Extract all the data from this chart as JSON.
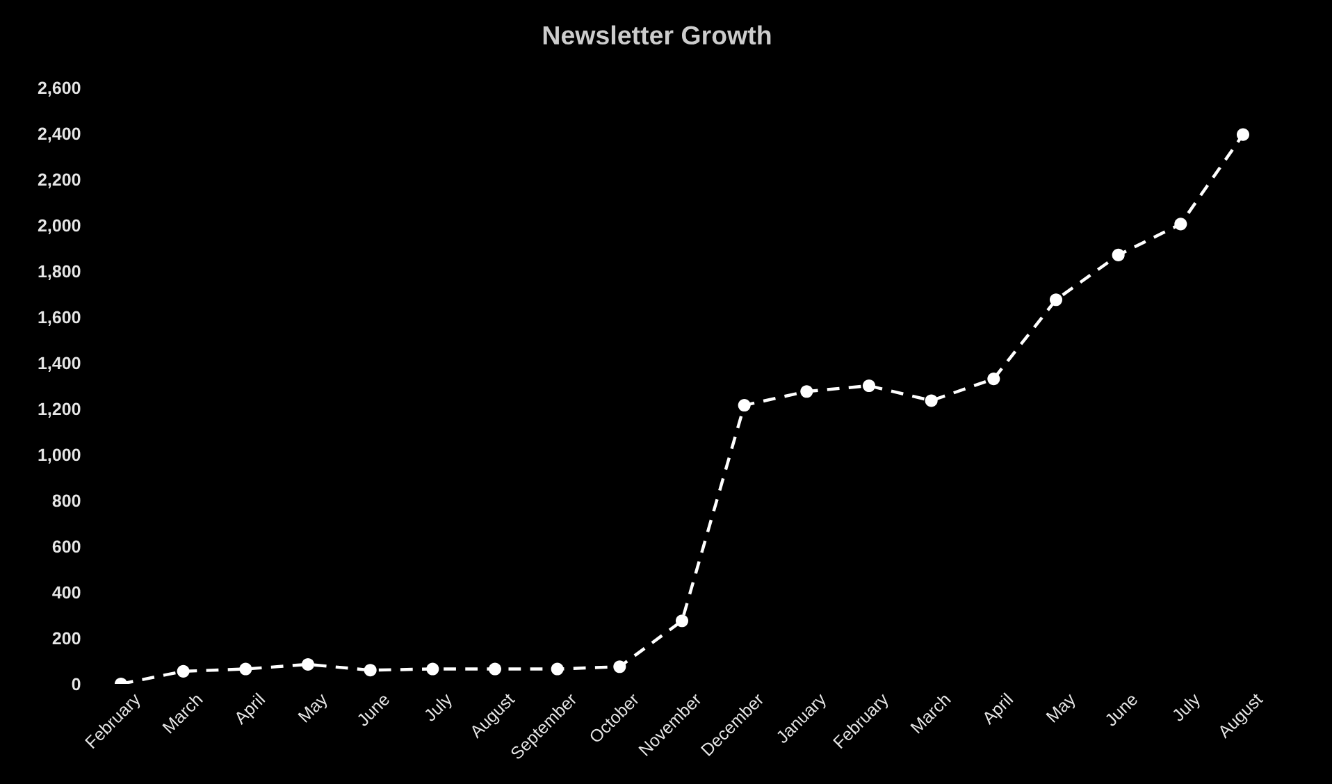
{
  "chart_data": {
    "type": "line",
    "title": "Newsletter Growth",
    "categories": [
      "February",
      "March",
      "April",
      "May",
      "June",
      "July",
      "August",
      "September",
      "October",
      "November",
      "December",
      "January",
      "February",
      "March",
      "April",
      "May",
      "June",
      "July",
      "August"
    ],
    "series": [
      {
        "color": "#ffffff",
        "values": [
          0,
          55,
          65,
          85,
          60,
          65,
          65,
          65,
          75,
          275,
          1215,
          1275,
          1300,
          1235,
          1330,
          1675,
          1870,
          2005,
          2395
        ]
      }
    ],
    "ylim": [
      0,
      2600
    ],
    "yticks": [
      0,
      200,
      400,
      600,
      800,
      {
        "value": 1000,
        "label": "1,000"
      },
      {
        "value": 1200,
        "label": "1,200"
      },
      {
        "value": 1400,
        "label": "1,400"
      },
      {
        "value": 1600,
        "label": "1,600"
      },
      {
        "value": 1800,
        "label": "1,800"
      },
      {
        "value": 2000,
        "label": "2,000"
      },
      {
        "value": 2200,
        "label": "2,200"
      },
      {
        "value": 2400,
        "label": "2,400"
      },
      {
        "value": 2600,
        "label": "2,600"
      }
    ],
    "grid": false,
    "marker": "circle",
    "line_style": "dashed"
  }
}
